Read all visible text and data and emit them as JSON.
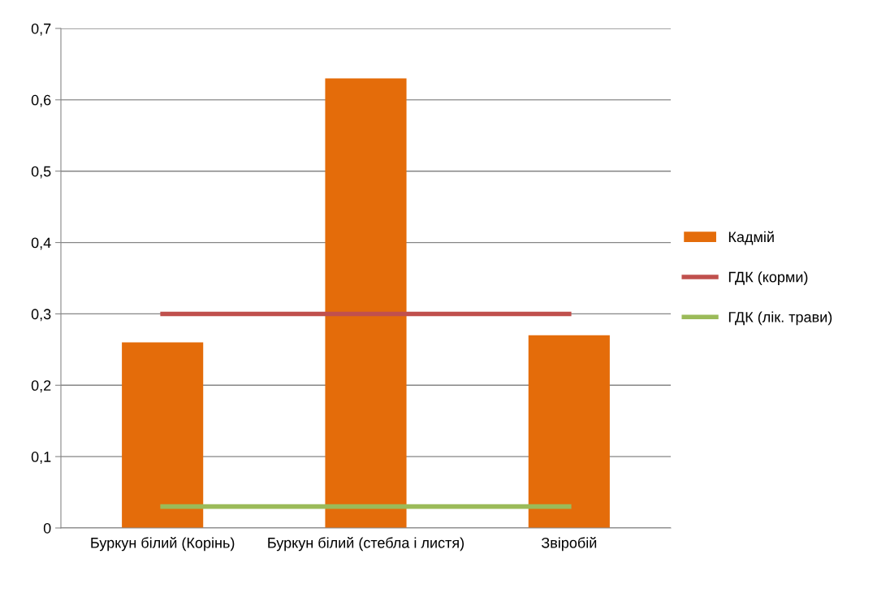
{
  "chart_data": {
    "type": "bar",
    "categories": [
      "Буркун білий (Корінь)",
      "Буркун білий (стебла і листя)",
      "Звіробій"
    ],
    "series": [
      {
        "name": "Кадмій",
        "color": "#e46c0a",
        "values": [
          0.26,
          0.63,
          0.27
        ]
      },
      {
        "name": "ГДК (корми)",
        "type": "line",
        "color": "#c0504d",
        "values": [
          0.3,
          0.3,
          0.3
        ]
      },
      {
        "name": "ГДК (лік. трави)",
        "type": "line",
        "color": "#9bbb59",
        "values": [
          0.03,
          0.03,
          0.03
        ]
      }
    ],
    "ylim": [
      0,
      0.7
    ],
    "yticks": [
      0,
      {
        "value": 0.1,
        "label": "0,1"
      },
      {
        "value": 0.2,
        "label": "0,2"
      },
      {
        "value": 0.3,
        "label": "0,3"
      },
      {
        "value": 0.4,
        "label": "0,4"
      },
      {
        "value": 0.5,
        "label": "0,5"
      },
      {
        "value": 0.6,
        "label": "0,6"
      },
      {
        "value": 0.7,
        "label": "0,7"
      }
    ],
    "grid": "y",
    "legend": "right",
    "marker": "none",
    "line_style": "solid"
  }
}
